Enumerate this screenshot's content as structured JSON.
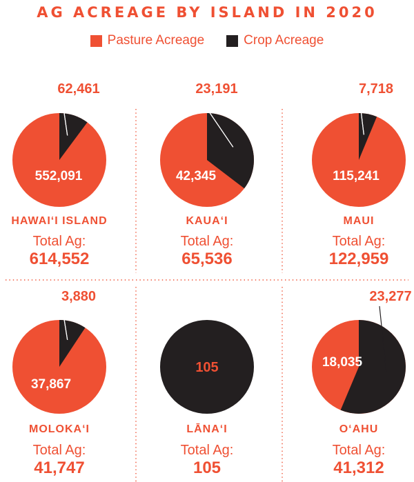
{
  "chart_data": {
    "type": "pie",
    "title": "AG ACREAGE BY ISLAND IN 2020",
    "legend": {
      "placement": "top-center",
      "entries": [
        "Pasture Acreage",
        "Crop Acreage"
      ]
    },
    "colors": {
      "pasture": "#ef5033",
      "crop": "#231f20",
      "divider": "#ef5033",
      "text": "#ef5033",
      "inner_text": "#ffffff"
    },
    "total_label": "Total Ag:",
    "pies": [
      {
        "island": "HAWAIʻI ISLAND",
        "pasture": 552091,
        "crop": 62461,
        "pasture_label": "552,091",
        "crop_label": "62,461",
        "total": "614,552"
      },
      {
        "island": "KAUAʻI",
        "pasture": 42345,
        "crop": 23191,
        "pasture_label": "42,345",
        "crop_label": "23,191",
        "total": "65,536"
      },
      {
        "island": "MAUI",
        "pasture": 115241,
        "crop": 7718,
        "pasture_label": "115,241",
        "crop_label": "7,718",
        "total": "122,959"
      },
      {
        "island": "MOLOKAʻI",
        "pasture": 37867,
        "crop": 3880,
        "pasture_label": "37,867",
        "crop_label": "3,880",
        "total": "41,747"
      },
      {
        "island": "LĀNAʻI",
        "pasture": 0,
        "crop": 105,
        "pasture_label": "",
        "crop_label": "105",
        "total": "105"
      },
      {
        "island": "OʻAHU",
        "pasture": 18035,
        "crop": 23277,
        "pasture_label": "18,035",
        "crop_label": "23,277",
        "total": "41,312"
      }
    ]
  }
}
